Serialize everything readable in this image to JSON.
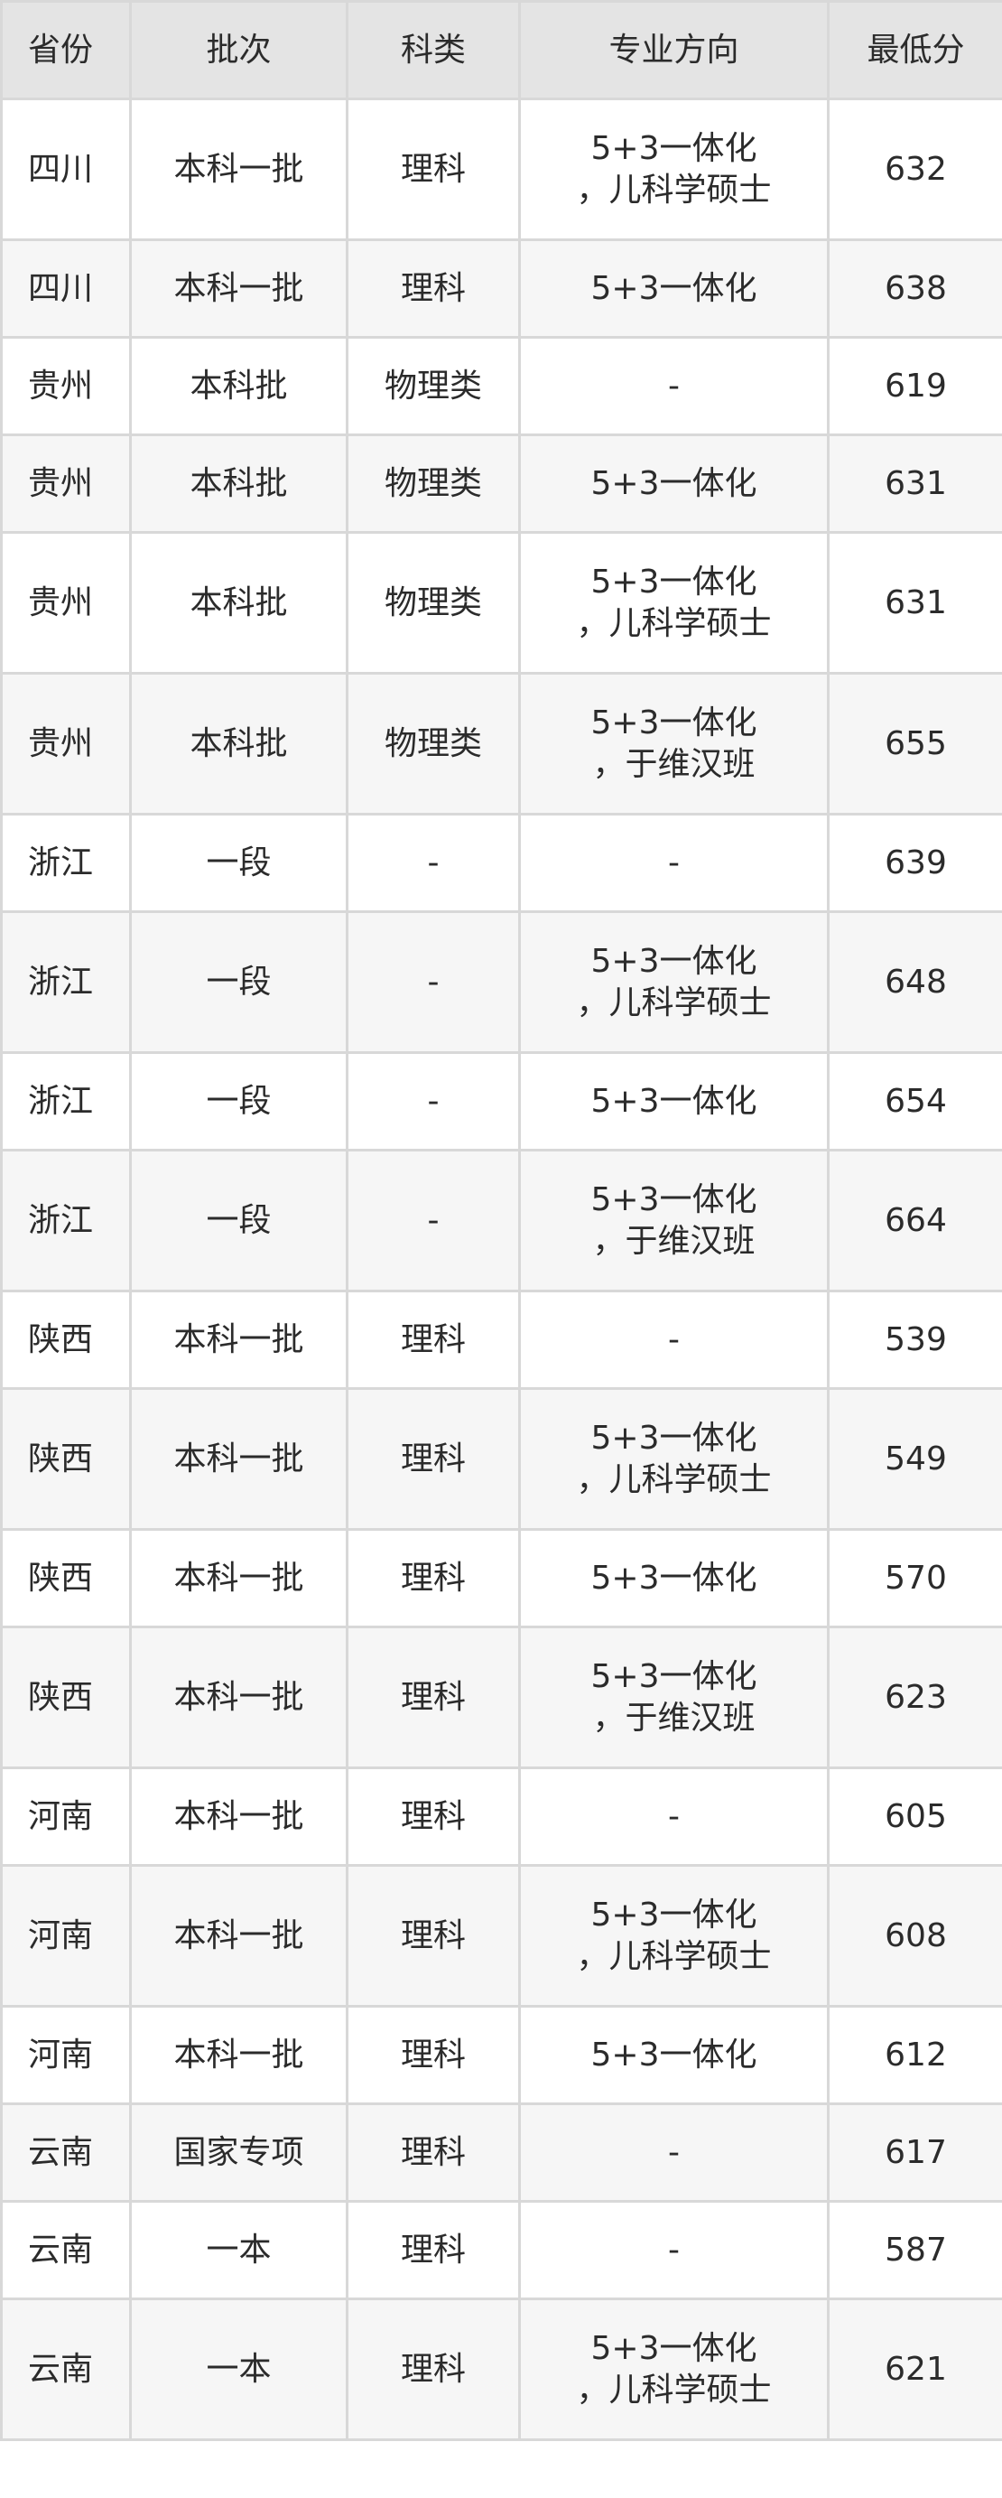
{
  "table": {
    "headers": [
      "省份",
      "批次",
      "科类",
      "专业方向",
      "最低分"
    ],
    "rows": [
      {
        "province": "四川",
        "batch": "本科一批",
        "category": "理科",
        "major": [
          "5+3一体化",
          "，儿科学硕士"
        ],
        "score": "632"
      },
      {
        "province": "四川",
        "batch": "本科一批",
        "category": "理科",
        "major": [
          "5+3一体化"
        ],
        "score": "638"
      },
      {
        "province": "贵州",
        "batch": "本科批",
        "category": "物理类",
        "major": [
          "-"
        ],
        "score": "619"
      },
      {
        "province": "贵州",
        "batch": "本科批",
        "category": "物理类",
        "major": [
          "5+3一体化"
        ],
        "score": "631"
      },
      {
        "province": "贵州",
        "batch": "本科批",
        "category": "物理类",
        "major": [
          "5+3一体化",
          "，儿科学硕士"
        ],
        "score": "631"
      },
      {
        "province": "贵州",
        "batch": "本科批",
        "category": "物理类",
        "major": [
          "5+3一体化",
          "，于维汉班"
        ],
        "score": "655"
      },
      {
        "province": "浙江",
        "batch": "一段",
        "category": "-",
        "major": [
          "-"
        ],
        "score": "639"
      },
      {
        "province": "浙江",
        "batch": "一段",
        "category": "-",
        "major": [
          "5+3一体化",
          "，儿科学硕士"
        ],
        "score": "648"
      },
      {
        "province": "浙江",
        "batch": "一段",
        "category": "-",
        "major": [
          "5+3一体化"
        ],
        "score": "654"
      },
      {
        "province": "浙江",
        "batch": "一段",
        "category": "-",
        "major": [
          "5+3一体化",
          "，于维汉班"
        ],
        "score": "664"
      },
      {
        "province": "陕西",
        "batch": "本科一批",
        "category": "理科",
        "major": [
          "-"
        ],
        "score": "539"
      },
      {
        "province": "陕西",
        "batch": "本科一批",
        "category": "理科",
        "major": [
          "5+3一体化",
          "，儿科学硕士"
        ],
        "score": "549"
      },
      {
        "province": "陕西",
        "batch": "本科一批",
        "category": "理科",
        "major": [
          "5+3一体化"
        ],
        "score": "570"
      },
      {
        "province": "陕西",
        "batch": "本科一批",
        "category": "理科",
        "major": [
          "5+3一体化",
          "，于维汉班"
        ],
        "score": "623"
      },
      {
        "province": "河南",
        "batch": "本科一批",
        "category": "理科",
        "major": [
          "-"
        ],
        "score": "605"
      },
      {
        "province": "河南",
        "batch": "本科一批",
        "category": "理科",
        "major": [
          "5+3一体化",
          "，儿科学硕士"
        ],
        "score": "608"
      },
      {
        "province": "河南",
        "batch": "本科一批",
        "category": "理科",
        "major": [
          "5+3一体化"
        ],
        "score": "612"
      },
      {
        "province": "云南",
        "batch": "国家专项",
        "category": "理科",
        "major": [
          "-"
        ],
        "score": "617"
      },
      {
        "province": "云南",
        "batch": "一本",
        "category": "理科",
        "major": [
          "-"
        ],
        "score": "587"
      },
      {
        "province": "云南",
        "batch": "一本",
        "category": "理科",
        "major": [
          "5+3一体化",
          "，儿科学硕士"
        ],
        "score": "621"
      }
    ]
  }
}
